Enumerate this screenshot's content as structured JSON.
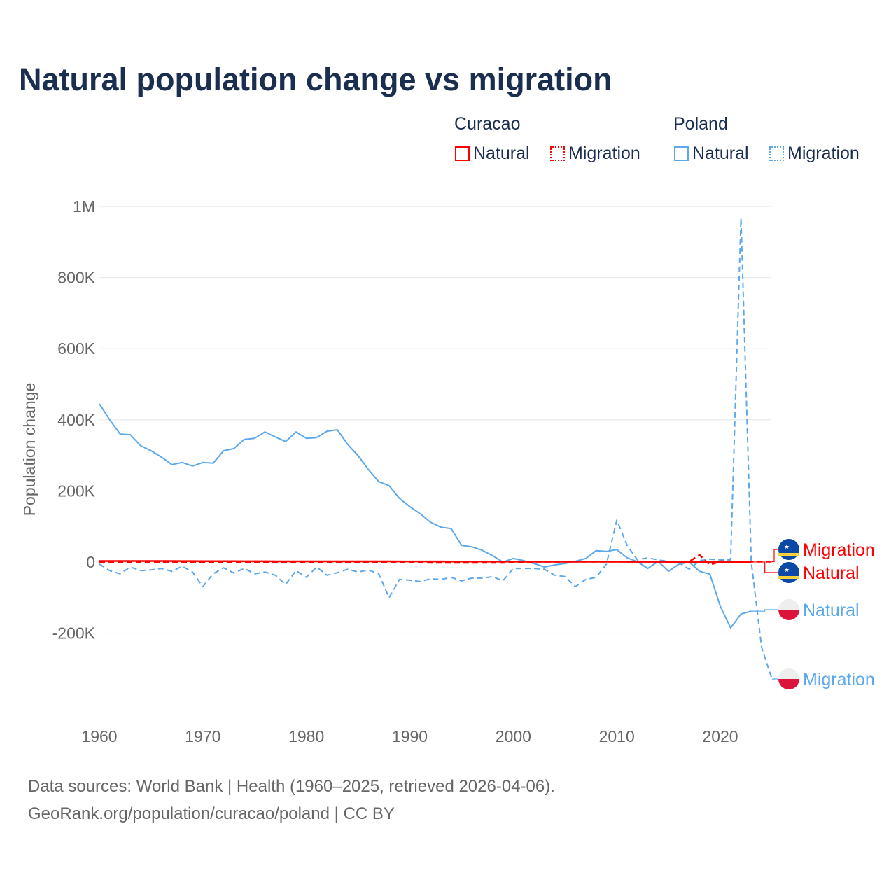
{
  "chart_data": {
    "type": "line",
    "title": "Natural population change vs migration",
    "xlabel": "",
    "ylabel": "Population change",
    "xlim": [
      1960,
      2025
    ],
    "ylim": [
      -400000,
      1000000
    ],
    "x_ticks": [
      1960,
      1970,
      1980,
      1990,
      2000,
      2010,
      2020
    ],
    "x_tick_labels": [
      "1960",
      "1970",
      "1980",
      "1990",
      "2000",
      "2010",
      "2020"
    ],
    "y_ticks": [
      -200000,
      0,
      200000,
      400000,
      600000,
      800000,
      1000000
    ],
    "y_tick_labels": [
      "-200K",
      "0",
      "200K",
      "400K",
      "600K",
      "800K",
      "1M"
    ],
    "grid": true,
    "legend_placement": "top-right",
    "legend_groups": [
      {
        "name": "Curacao",
        "items": [
          "Natural",
          "Migration"
        ]
      },
      {
        "name": "Poland",
        "items": [
          "Natural",
          "Migration"
        ]
      }
    ],
    "series": [
      {
        "name": "Curacao Natural",
        "country": "Curacao",
        "label": "Natural",
        "color": "#ff0000",
        "dash": false,
        "x_start": 1960,
        "values": [
          3000,
          3000,
          3000,
          3000,
          3000,
          3000,
          3000,
          2900,
          2800,
          2700,
          2600,
          2500,
          2400,
          2300,
          2200,
          2200,
          2100,
          2000,
          2000,
          2000,
          2000,
          2000,
          2000,
          2000,
          2000,
          1900,
          1900,
          1900,
          1900,
          1800,
          1800,
          1800,
          1700,
          1700,
          1600,
          1500,
          1400,
          1300,
          1200,
          1100,
          1100,
          1000,
          1000,
          1000,
          1000,
          900,
          900,
          900,
          900,
          900,
          900,
          800,
          800,
          700,
          700,
          600,
          500,
          400,
          300,
          200,
          100,
          0,
          -200,
          100
        ]
      },
      {
        "name": "Curacao Migration",
        "country": "Curacao",
        "label": "Migration",
        "color": "#ff0000",
        "dash": true,
        "x_start": 1960,
        "values": [
          -1000,
          -1000,
          -1000,
          -1000,
          -1000,
          -1000,
          -1000,
          -1000,
          -1000,
          -1000,
          -1000,
          -1000,
          -1000,
          -1000,
          -1000,
          -1000,
          -1000,
          -1000,
          -1000,
          -1000,
          -1000,
          -1000,
          -1000,
          -1000,
          -1000,
          -1000,
          -1000,
          -1000,
          -1000,
          -1000,
          -1000,
          -1000,
          -2000,
          -2000,
          -2000,
          -2000,
          -2000,
          -2000,
          -2000,
          -2000,
          -1000,
          0,
          1000,
          1000,
          1000,
          1000,
          1000,
          1000,
          1000,
          1000,
          1000,
          1000,
          1000,
          1000,
          1000,
          1000,
          1000,
          1000,
          20000,
          -8000,
          2000,
          1000,
          1000,
          1000,
          1000,
          1000
        ]
      },
      {
        "name": "Poland Natural",
        "country": "Poland",
        "label": "Natural",
        "color": "#5ca8ec",
        "dash": false,
        "x_start": 1960,
        "values": [
          445000,
          400000,
          360000,
          358000,
          327000,
          313000,
          295000,
          274000,
          280000,
          270000,
          280000,
          278000,
          313000,
          319000,
          345000,
          348000,
          366000,
          352000,
          339000,
          366000,
          348000,
          350000,
          368000,
          372000,
          331000,
          299000,
          260000,
          226000,
          215000,
          179000,
          156000,
          136000,
          112000,
          98000,
          94000,
          47000,
          43000,
          33000,
          18000,
          0,
          10000,
          4000,
          -4000,
          -14000,
          -8000,
          -4000,
          2000,
          10000,
          32000,
          30000,
          35000,
          12000,
          1000,
          -18000,
          2000,
          -26000,
          -6000,
          0,
          -26000,
          -34000,
          -124000,
          -185000,
          -146000,
          -138000
        ]
      },
      {
        "name": "Poland Migration",
        "country": "Poland",
        "label": "Migration",
        "color": "#5ca8ec",
        "dash": true,
        "x_start": 1960,
        "values": [
          -6000,
          -24000,
          -33000,
          -14000,
          -24000,
          -22000,
          -18000,
          -26000,
          -12000,
          -28000,
          -69000,
          -33000,
          -16000,
          -31000,
          -18000,
          -33000,
          -28000,
          -37000,
          -63000,
          -24000,
          -43000,
          -14000,
          -37000,
          -30000,
          -20000,
          -28000,
          -22000,
          -33000,
          -100000,
          -49000,
          -51000,
          -55000,
          -47000,
          -49000,
          -43000,
          -53000,
          -45000,
          -45000,
          -41000,
          -53000,
          -18000,
          -18000,
          -18000,
          -20000,
          -37000,
          -41000,
          -69000,
          -49000,
          -43000,
          -6000,
          118000,
          47000,
          6000,
          12000,
          6000,
          2000,
          -2000,
          -20000,
          4000,
          8000,
          6000,
          6000,
          967000,
          0,
          -240000,
          -329000
        ]
      }
    ],
    "end_labels": [
      {
        "series": "Curacao Migration",
        "text": "Migration",
        "flag": "curacao"
      },
      {
        "series": "Curacao Natural",
        "text": "Natural",
        "flag": "curacao"
      },
      {
        "series": "Poland Natural",
        "text": "Natural",
        "flag": "poland"
      },
      {
        "series": "Poland Migration",
        "text": "Migration",
        "flag": "poland"
      }
    ]
  },
  "footer": {
    "line1": "Data sources: World Bank | Health (1960–2025, retrieved 2026-04-06).",
    "line2": "GeoRank.org/population/curacao/poland | CC BY"
  }
}
